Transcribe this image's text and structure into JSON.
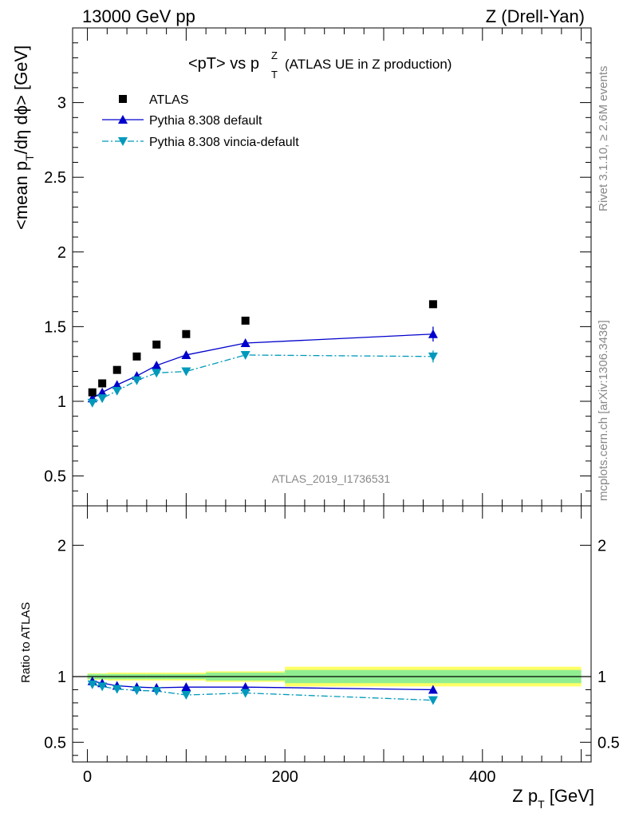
{
  "header": {
    "left": "13000 GeV pp",
    "right": "Z (Drell-Yan)"
  },
  "title": {
    "main": "<pT> vs p",
    "sup": "Z",
    "sub": "T",
    "extra": "(ATLAS UE in Z production)"
  },
  "side_text": {
    "rivet": "Rivet 3.1.10, ≥ 2.6M events",
    "mcplots": "mcplots.cern.ch [arXiv:1306.3436]"
  },
  "watermark": "ATLAS_2019_I1736531",
  "chart_data": [
    {
      "type": "scatter",
      "panel": "main",
      "ylabel": "<mean p_T/dη dϕ> [GeV]",
      "ylim": [
        0.3,
        3.5
      ],
      "xlim": [
        -15,
        510
      ],
      "yticks": [
        0.5,
        1,
        1.5,
        2,
        2.5,
        3
      ],
      "ytick_labels": [
        "0.5",
        "1",
        "1.5",
        "2",
        "2.5",
        "3"
      ],
      "legend_position": "top-left",
      "series": [
        {
          "name": "ATLAS",
          "style": "square-marker",
          "color": "#000000",
          "x": [
            5,
            15,
            30,
            50,
            70,
            100,
            160,
            350
          ],
          "y": [
            1.06,
            1.12,
            1.21,
            1.3,
            1.38,
            1.45,
            1.54,
            1.65
          ]
        },
        {
          "name": "Pythia 8.308 default",
          "style": "solid-line-triangle-up",
          "color": "#0000cc",
          "x": [
            5,
            15,
            30,
            50,
            70,
            100,
            160,
            350
          ],
          "y": [
            1.02,
            1.06,
            1.11,
            1.17,
            1.24,
            1.31,
            1.39,
            1.45
          ],
          "yerr": [
            0.01,
            0.01,
            0.01,
            0.01,
            0.01,
            0.01,
            0.02,
            0.05
          ]
        },
        {
          "name": "Pythia 8.308 vincia-default",
          "style": "dashdot-line-triangle-down",
          "color": "#0099bb",
          "x": [
            5,
            15,
            30,
            50,
            70,
            100,
            160,
            350
          ],
          "y": [
            0.99,
            1.02,
            1.07,
            1.14,
            1.19,
            1.2,
            1.31,
            1.3
          ],
          "yerr": [
            0.01,
            0.01,
            0.01,
            0.01,
            0.01,
            0.01,
            0.02,
            0.04
          ]
        }
      ]
    },
    {
      "type": "scatter",
      "panel": "ratio",
      "ylabel": "Ratio to ATLAS",
      "xlabel": "Z p_T [GeV]",
      "ylim": [
        0.35,
        2.3
      ],
      "xlim": [
        -15,
        510
      ],
      "yticks": [
        0.5,
        1,
        2
      ],
      "ytick_labels": [
        "0.5",
        "1",
        "2"
      ],
      "xticks": [
        0,
        200,
        400
      ],
      "xtick_labels": [
        "0",
        "200",
        "400"
      ],
      "uncertainty_band": {
        "x_edges": [
          0,
          10,
          20,
          40,
          60,
          80,
          120,
          200,
          500
        ],
        "stat": [
          0.02,
          0.02,
          0.02,
          0.02,
          0.02,
          0.02,
          0.03,
          0.05
        ],
        "total": [
          0.025,
          0.025,
          0.03,
          0.03,
          0.03,
          0.03,
          0.04,
          0.075
        ],
        "stat_color": "#90ee90",
        "total_color": "#ffff66"
      },
      "series": [
        {
          "name": "Pythia 8.308 default",
          "color": "#0000cc",
          "x": [
            5,
            15,
            30,
            50,
            70,
            100,
            160,
            350
          ],
          "y": [
            0.965,
            0.95,
            0.93,
            0.92,
            0.915,
            0.92,
            0.92,
            0.9
          ],
          "yerr": [
            0.01,
            0.01,
            0.01,
            0.01,
            0.01,
            0.01,
            0.015,
            0.03
          ]
        },
        {
          "name": "Pythia 8.308 vincia-default",
          "color": "#0099bb",
          "x": [
            5,
            15,
            30,
            50,
            70,
            100,
            160,
            350
          ],
          "y": [
            0.94,
            0.925,
            0.905,
            0.895,
            0.89,
            0.86,
            0.875,
            0.82
          ],
          "yerr": [
            0.01,
            0.01,
            0.01,
            0.01,
            0.01,
            0.01,
            0.015,
            0.025
          ]
        }
      ]
    }
  ]
}
